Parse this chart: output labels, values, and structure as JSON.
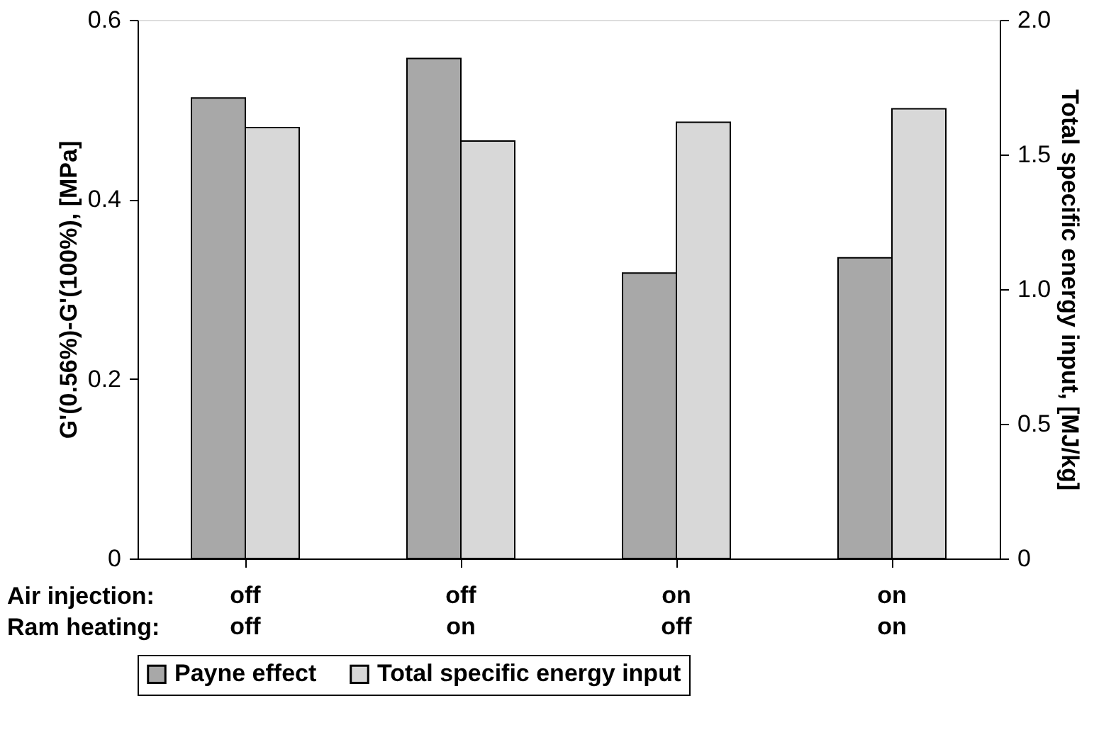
{
  "chart_data": {
    "type": "bar",
    "categories": [
      "off\noff",
      "off\non",
      "on\noff",
      "on\non"
    ],
    "annotations": [
      "Air injection:",
      "Ram heating:"
    ],
    "ylabel": "G'(0.56%)-G'(100%), [MPa]",
    "y2label": "Total specific energy input, [MJ/kg]",
    "series": [
      {
        "name": "Payne effect",
        "color": "#a8a8a8",
        "values": [
          0.513,
          0.557,
          0.318,
          0.335
        ]
      },
      {
        "name": "Total specific energy input",
        "color": "#d8d8d8",
        "axis": "y2",
        "values": [
          1.6,
          1.55,
          1.62,
          1.67
        ]
      }
    ],
    "ylim": [
      0,
      0.6
    ],
    "yticks": [
      0,
      0.2,
      0.4,
      0.6
    ],
    "y2lim": [
      0,
      2
    ],
    "y2ticks": [
      0,
      0.5,
      {
        "value": 1,
        "label": "1.0"
      },
      1.5,
      {
        "value": 2,
        "label": "2.0"
      }
    ],
    "grid": false,
    "legend": "bottom"
  }
}
